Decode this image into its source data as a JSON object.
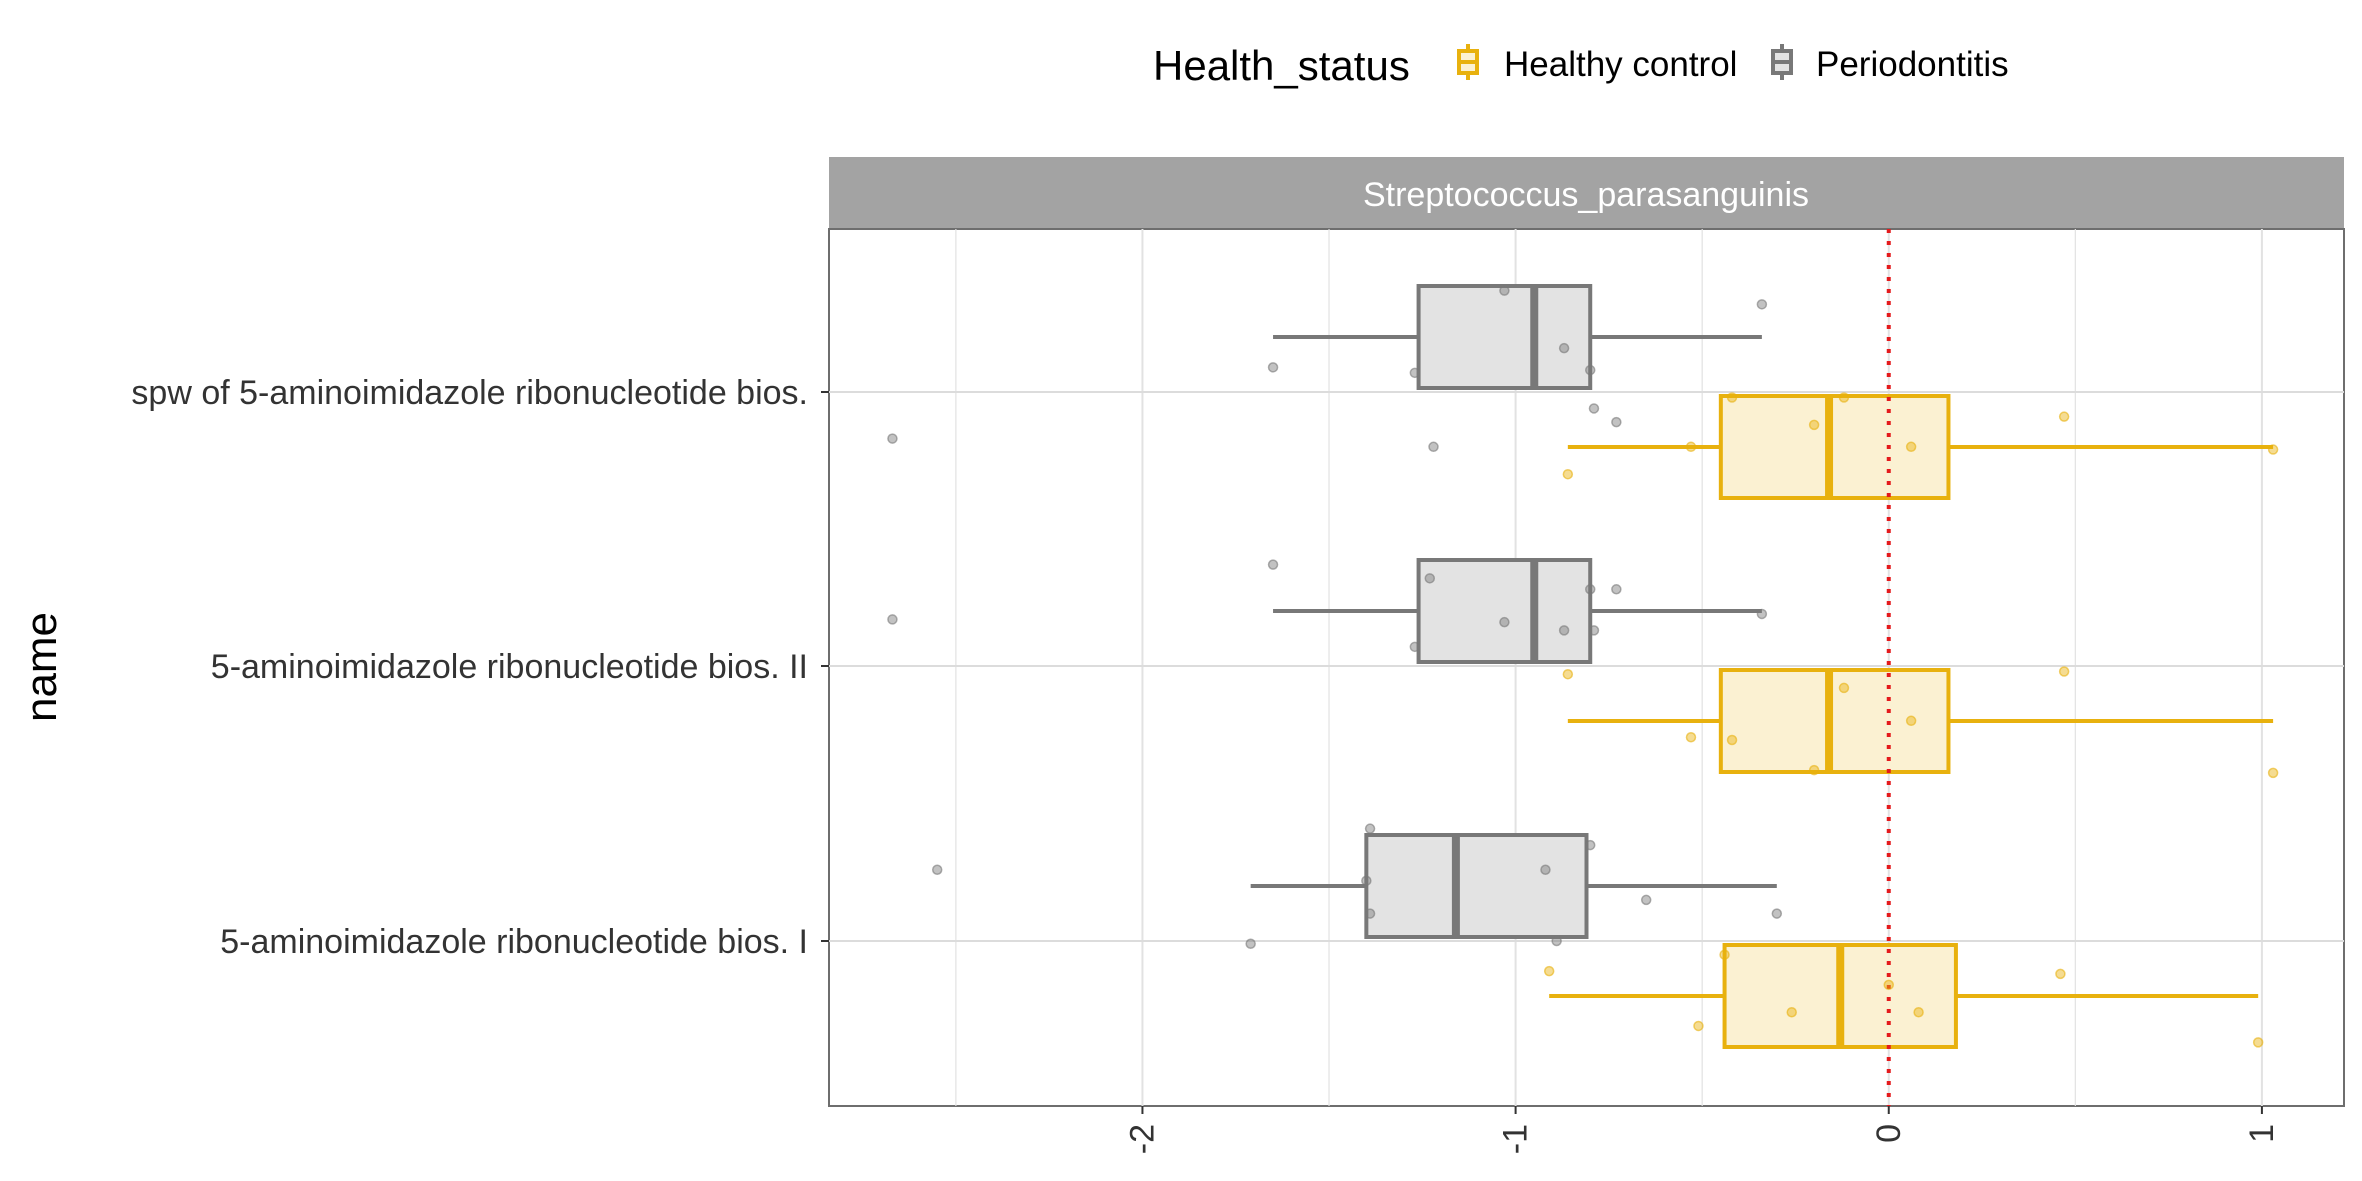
{
  "chart_data": {
    "type": "boxplot",
    "orientation": "horizontal",
    "facet_title": "Streptococcus_parasanguinis",
    "ylabel": "name",
    "xlabel": "",
    "xlim": [
      -2.84,
      1.22
    ],
    "x_ticks": [
      -2,
      -1,
      0,
      1
    ],
    "x_tick_labels": [
      "-2",
      "-1",
      "0",
      "1"
    ],
    "reference_line": {
      "x": 0,
      "style": "dotted",
      "color": "#e41a1c"
    },
    "grid": true,
    "legend": {
      "title": "Health_status",
      "position": "top",
      "entries": [
        {
          "name": "Healthy control",
          "color": "#e8b10e"
        },
        {
          "name": "Periodontitis",
          "color": "#787878"
        }
      ]
    },
    "categories": [
      "spw of 5-aminoimidazole ribonucleotide bios.",
      "5-aminoimidazole ribonucleotide bios. II",
      "5-aminoimidazole ribonucleotide bios. I"
    ],
    "series": [
      {
        "name": "Periodontitis",
        "color": "#787878",
        "fill": "#e3e3e3",
        "boxes": [
          {
            "category": "spw of 5-aminoimidazole ribonucleotide bios.",
            "whisker_low": -1.65,
            "q1": -1.26,
            "median": -0.95,
            "q3": -0.8,
            "whisker_high": -0.34,
            "points": [
              [
                -2.67,
                0.17
              ],
              [
                -1.65,
                -0.09
              ],
              [
                -1.27,
                -0.07
              ],
              [
                -1.22,
                0.2
              ],
              [
                -1.03,
                -0.37
              ],
              [
                -0.87,
                -0.16
              ],
              [
                -0.8,
                -0.08
              ],
              [
                -0.79,
                0.06
              ],
              [
                -0.73,
                0.11
              ],
              [
                -0.34,
                -0.32
              ]
            ]
          },
          {
            "category": "5-aminoimidazole ribonucleotide bios. II",
            "whisker_low": -1.65,
            "q1": -1.26,
            "median": -0.95,
            "q3": -0.8,
            "whisker_high": -0.34,
            "points": [
              [
                -2.67,
                -0.17
              ],
              [
                -1.65,
                -0.37
              ],
              [
                -1.23,
                -0.32
              ],
              [
                -1.27,
                -0.07
              ],
              [
                -1.03,
                -0.16
              ],
              [
                -0.87,
                -0.13
              ],
              [
                -0.8,
                -0.28
              ],
              [
                -0.79,
                -0.13
              ],
              [
                -0.73,
                -0.28
              ],
              [
                -0.34,
                -0.19
              ]
            ]
          },
          {
            "category": "5-aminoimidazole ribonucleotide bios. I",
            "whisker_low": -1.71,
            "q1": -1.4,
            "median": -1.16,
            "q3": -0.81,
            "whisker_high": -0.3,
            "points": [
              [
                -2.55,
                -0.26
              ],
              [
                -1.71,
                0.01
              ],
              [
                -1.4,
                -0.22
              ],
              [
                -1.39,
                -0.41
              ],
              [
                -1.39,
                -0.1
              ],
              [
                -0.92,
                -0.26
              ],
              [
                -0.89,
                0.0
              ],
              [
                -0.8,
                -0.35
              ],
              [
                -0.65,
                -0.15
              ],
              [
                -0.3,
                -0.1
              ]
            ]
          }
        ]
      },
      {
        "name": "Healthy control",
        "color": "#e8b10e",
        "fill": "#fbf1d2",
        "boxes": [
          {
            "category": "spw of 5-aminoimidazole ribonucleotide bios.",
            "whisker_low": -0.86,
            "q1": -0.45,
            "median": -0.16,
            "q3": 0.16,
            "whisker_high": 1.03,
            "points": [
              [
                -0.86,
                0.3
              ],
              [
                -0.53,
                0.2
              ],
              [
                -0.42,
                0.02
              ],
              [
                -0.2,
                0.12
              ],
              [
                -0.12,
                0.02
              ],
              [
                0.06,
                0.2
              ],
              [
                0.47,
                0.09
              ],
              [
                1.03,
                0.21
              ]
            ]
          },
          {
            "category": "5-aminoimidazole ribonucleotide bios. II",
            "whisker_low": -0.86,
            "q1": -0.45,
            "median": -0.16,
            "q3": 0.16,
            "whisker_high": 1.03,
            "points": [
              [
                -0.86,
                0.03
              ],
              [
                -0.53,
                0.26
              ],
              [
                -0.42,
                0.27
              ],
              [
                -0.2,
                0.38
              ],
              [
                -0.12,
                0.08
              ],
              [
                0.06,
                0.2
              ],
              [
                0.47,
                0.02
              ],
              [
                1.03,
                0.39
              ]
            ]
          },
          {
            "category": "5-aminoimidazole ribonucleotide bios. I",
            "whisker_low": -0.91,
            "q1": -0.44,
            "median": -0.13,
            "q3": 0.18,
            "whisker_high": 0.99,
            "points": [
              [
                -0.91,
                0.11
              ],
              [
                -0.51,
                0.31
              ],
              [
                -0.44,
                0.05
              ],
              [
                -0.26,
                0.26
              ],
              [
                0.0,
                0.16
              ],
              [
                0.08,
                0.26
              ],
              [
                0.46,
                0.12
              ],
              [
                0.99,
                0.37
              ]
            ]
          }
        ]
      }
    ]
  }
}
